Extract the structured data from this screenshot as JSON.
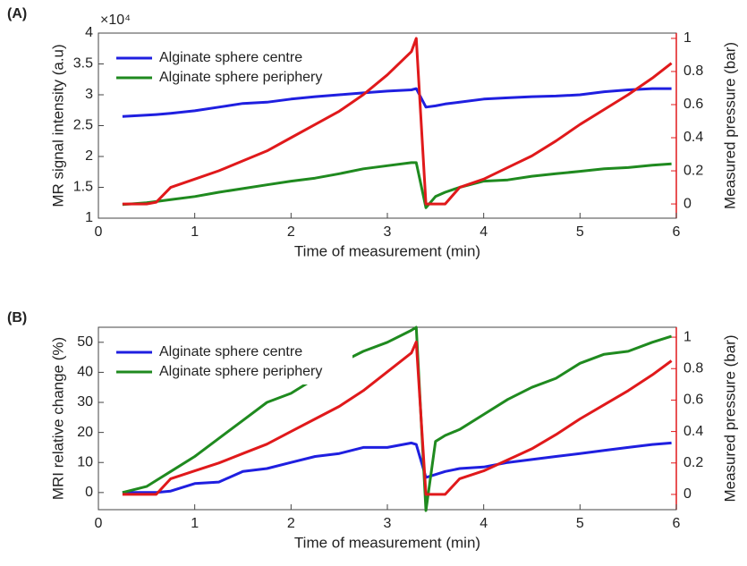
{
  "chart_data": [
    {
      "type": "line",
      "panel_label": "(A)",
      "x_label": "Time of measurement (min)",
      "y_label": "MR signal intensity (a.u)",
      "y2_label": "Measured pressure (bar)",
      "y_multiplier": "×10⁴",
      "x": [
        0.25,
        0.5,
        0.6,
        0.75,
        1.0,
        1.25,
        1.5,
        1.75,
        2.0,
        2.25,
        2.5,
        2.75,
        3.0,
        3.25,
        3.3,
        3.4,
        3.5,
        3.6,
        3.75,
        4.0,
        4.25,
        4.5,
        4.75,
        5.0,
        5.25,
        5.5,
        5.75,
        5.95
      ],
      "series": [
        {
          "name": "Alginate sphere centre",
          "color": "#1f1fe0",
          "values": [
            2.65,
            2.67,
            2.68,
            2.7,
            2.74,
            2.8,
            2.86,
            2.88,
            2.93,
            2.97,
            3.0,
            3.03,
            3.06,
            3.08,
            3.1,
            2.8,
            2.82,
            2.85,
            2.88,
            2.93,
            2.95,
            2.97,
            2.98,
            3.0,
            3.05,
            3.08,
            3.1,
            3.1
          ]
        },
        {
          "name": "Alginate sphere periphery",
          "color": "#1f8a1f",
          "values": [
            1.22,
            1.25,
            1.27,
            1.3,
            1.35,
            1.42,
            1.48,
            1.54,
            1.6,
            1.65,
            1.72,
            1.8,
            1.85,
            1.9,
            1.9,
            1.17,
            1.35,
            1.42,
            1.5,
            1.6,
            1.62,
            1.68,
            1.72,
            1.76,
            1.8,
            1.82,
            1.86,
            1.88
          ]
        },
        {
          "color": "#e0191b",
          "axis": "y2",
          "values": [
            0,
            0,
            0.01,
            0.1,
            0.15,
            0.2,
            0.26,
            0.32,
            0.4,
            0.48,
            0.56,
            0.66,
            0.78,
            0.92,
            1.0,
            0,
            0,
            0,
            0.1,
            0.15,
            0.22,
            0.29,
            0.38,
            0.48,
            0.57,
            0.66,
            0.76,
            0.85
          ]
        }
      ],
      "xlim": [
        0,
        6
      ],
      "xticks": [
        0,
        1,
        2,
        3,
        4,
        5,
        6
      ],
      "ylim": [
        1,
        4
      ],
      "yticks": [
        1,
        1.5,
        2,
        2.5,
        3,
        3.5,
        4
      ],
      "y2lim": [
        -0.086,
        1.032
      ],
      "y2ticks": [
        0,
        0.2,
        0.4,
        0.6,
        0.8,
        1
      ],
      "y2color": "#e0191b",
      "legend": "upper left"
    },
    {
      "type": "line",
      "panel_label": "(B)",
      "x_label": "Time of measurement (min)",
      "y_label": "MRI relative change (%)",
      "y2_label": "Measured pressure (bar)",
      "x": [
        0.25,
        0.5,
        0.6,
        0.75,
        1.0,
        1.25,
        1.5,
        1.75,
        2.0,
        2.25,
        2.5,
        2.75,
        3.0,
        3.25,
        3.3,
        3.4,
        3.5,
        3.6,
        3.75,
        4.0,
        4.25,
        4.5,
        4.75,
        5.0,
        5.25,
        5.5,
        5.75,
        5.95
      ],
      "series": [
        {
          "name": "Alginate sphere centre",
          "color": "#1f1fe0",
          "values": [
            0,
            0,
            0,
            0.5,
            3,
            3.5,
            7,
            8,
            10,
            12,
            13,
            15,
            15,
            16.5,
            16,
            5,
            6,
            7,
            8,
            8.5,
            10,
            11,
            12,
            13,
            14,
            15,
            16,
            16.5
          ]
        },
        {
          "name": "Alginate sphere periphery",
          "color": "#1f8a1f",
          "values": [
            0,
            2,
            4,
            7,
            12,
            18,
            24,
            30,
            33,
            38,
            43,
            47,
            50,
            54,
            55,
            -6,
            17,
            19,
            21,
            26,
            31,
            35,
            38,
            43,
            46,
            47,
            50,
            52
          ]
        },
        {
          "color": "#e0191b",
          "axis": "y2",
          "values": [
            0,
            0,
            0,
            0.1,
            0.15,
            0.2,
            0.26,
            0.32,
            0.4,
            0.48,
            0.56,
            0.66,
            0.78,
            0.9,
            0.97,
            0,
            0,
            0,
            0.1,
            0.15,
            0.22,
            0.29,
            0.38,
            0.48,
            0.57,
            0.66,
            0.76,
            0.85
          ]
        }
      ],
      "xlim": [
        0,
        6
      ],
      "xticks": [
        0,
        1,
        2,
        3,
        4,
        5,
        6
      ],
      "ylim": [
        -5.7,
        55
      ],
      "yticks": [
        0,
        10,
        20,
        30,
        40,
        50
      ],
      "y2lim": [
        -0.097,
        1.063
      ],
      "y2ticks": [
        0,
        0.2,
        0.4,
        0.6,
        0.8,
        1
      ],
      "y2color": "#e0191b",
      "legend": "upper left"
    }
  ]
}
